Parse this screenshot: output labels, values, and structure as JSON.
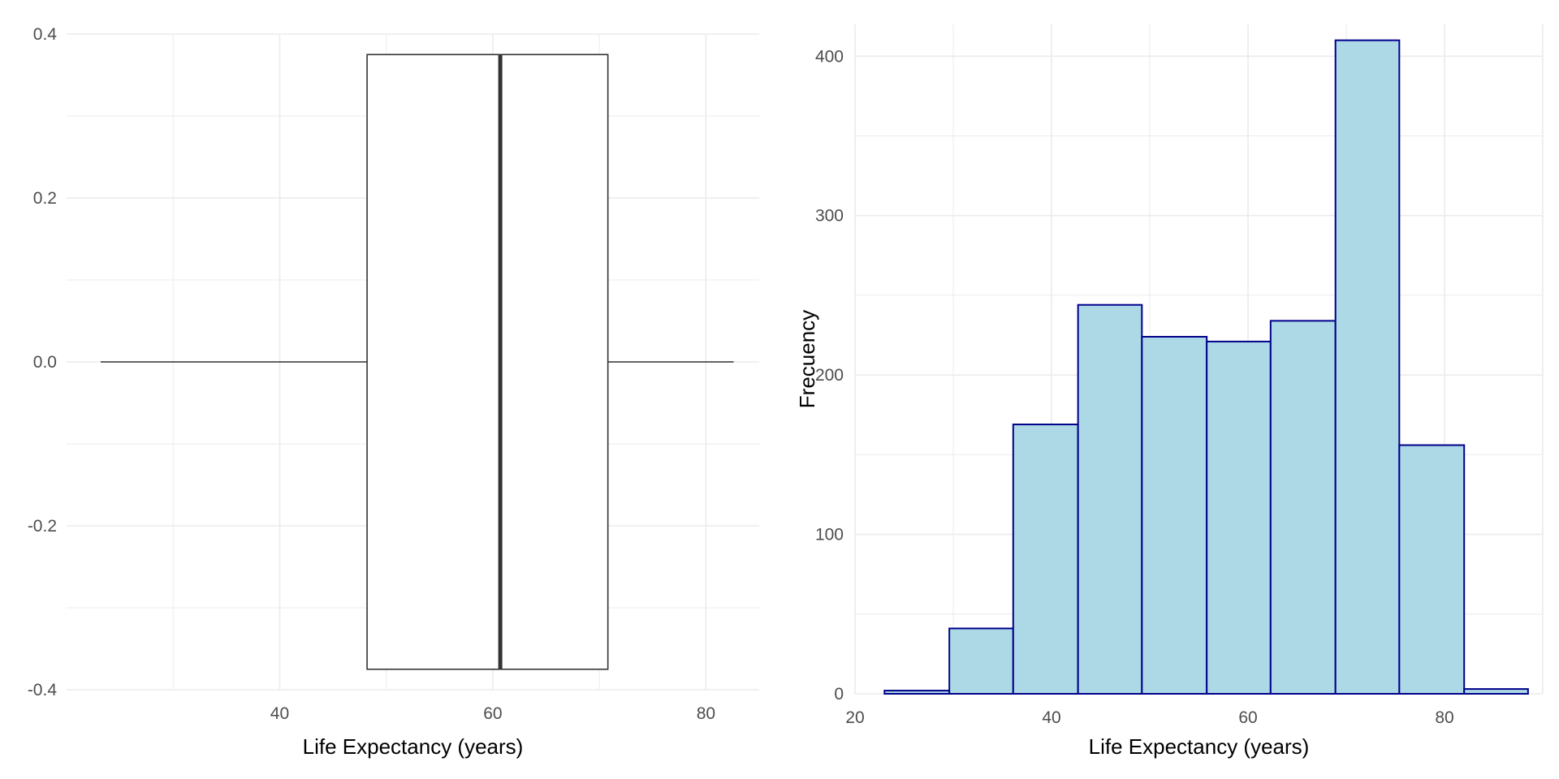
{
  "chart_data": [
    {
      "type": "boxplot",
      "orientation": "horizontal",
      "xlabel": "Life Expectancy (years)",
      "ylabel": "",
      "xlim": [
        20,
        85
      ],
      "ylim": [
        -0.4,
        0.4
      ],
      "x_ticks": [
        40,
        60,
        80
      ],
      "y_ticks": [
        -0.4,
        -0.2,
        0.0,
        0.2,
        0.4
      ],
      "y_tick_labels": [
        "-0.4",
        "-0.2",
        "0.0",
        "0.2",
        "0.4"
      ],
      "box": {
        "min": 23.2,
        "q1": 48.2,
        "median": 60.7,
        "q3": 70.8,
        "max": 82.6,
        "y_center": 0,
        "half_width": 0.375
      },
      "grid": true,
      "colors": {
        "box_fill": "#ffffff",
        "box_stroke": "#333333",
        "median": "#333333",
        "grid": "#ebebeb"
      }
    },
    {
      "type": "histogram",
      "xlabel": "Life Expectancy (years)",
      "ylabel": "Frecuency",
      "xlim": [
        20,
        90
      ],
      "ylim": [
        0,
        420
      ],
      "x_ticks": [
        20,
        40,
        60,
        80
      ],
      "y_ticks": [
        0,
        100,
        200,
        300,
        400
      ],
      "bins": [
        {
          "x0": 23.0,
          "x1": 29.6,
          "count": 2
        },
        {
          "x0": 29.6,
          "x1": 36.1,
          "count": 41
        },
        {
          "x0": 36.1,
          "x1": 42.7,
          "count": 169
        },
        {
          "x0": 42.7,
          "x1": 49.2,
          "count": 244
        },
        {
          "x0": 49.2,
          "x1": 55.8,
          "count": 224
        },
        {
          "x0": 55.8,
          "x1": 62.3,
          "count": 221
        },
        {
          "x0": 62.3,
          "x1": 68.9,
          "count": 234
        },
        {
          "x0": 68.9,
          "x1": 75.4,
          "count": 410
        },
        {
          "x0": 75.4,
          "x1": 82.0,
          "count": 156
        },
        {
          "x0": 82.0,
          "x1": 88.5,
          "count": 3
        }
      ],
      "grid": true,
      "colors": {
        "bar_fill": "#add8e6",
        "bar_stroke": "#00008b",
        "grid": "#ebebeb"
      }
    }
  ]
}
